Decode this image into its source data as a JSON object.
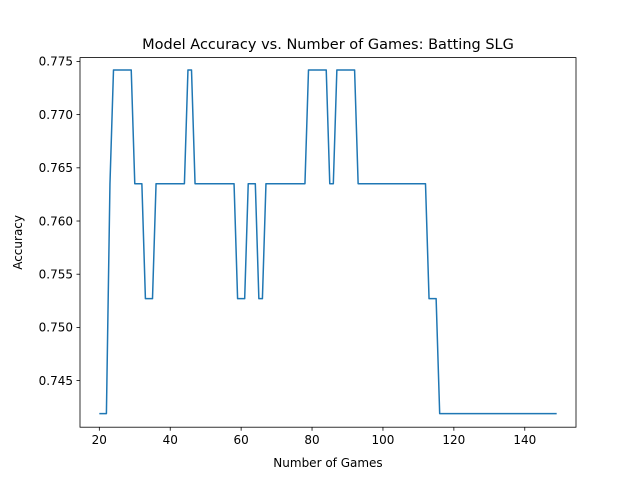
{
  "chart_data": {
    "type": "line",
    "title": "Model Accuracy vs. Number of Games: Batting SLG",
    "xlabel": "Number of Games",
    "ylabel": "Accuracy",
    "xlim": [
      14.55,
      154.45
    ],
    "ylim": [
      0.74062,
      0.77536
    ],
    "xticks": [
      20,
      40,
      60,
      80,
      100,
      120,
      140
    ],
    "yticks": [
      0.745,
      0.75,
      0.755,
      0.76,
      0.765,
      0.77,
      0.775
    ],
    "ytick_labels": [
      "0.745",
      "0.750",
      "0.755",
      "0.760",
      "0.765",
      "0.770",
      "0.775"
    ],
    "grid": false,
    "line_color": "#1f77b4",
    "series": [
      {
        "x": [
          20,
          22,
          23,
          24,
          25,
          26,
          27,
          28,
          29,
          30,
          31,
          32,
          33,
          34,
          35,
          36,
          37,
          38,
          39,
          40,
          41,
          42,
          43,
          44,
          45,
          46,
          47,
          48,
          49,
          50,
          51,
          52,
          53,
          54,
          55,
          56,
          57,
          58,
          59,
          60,
          61,
          62,
          63,
          64,
          65,
          66,
          67,
          68,
          69,
          70,
          71,
          72,
          73,
          74,
          75,
          76,
          77,
          78,
          79,
          80,
          81,
          82,
          83,
          84,
          85,
          86,
          87,
          88,
          89,
          90,
          91,
          92,
          93,
          94,
          95,
          96,
          97,
          98,
          99,
          100,
          101,
          102,
          103,
          104,
          105,
          106,
          107,
          108,
          109,
          110,
          111,
          112,
          113,
          114,
          115,
          116,
          117,
          118,
          119,
          120,
          125,
          130,
          135,
          140,
          145,
          149
        ],
        "y": [
          0.7419,
          0.7419,
          0.7635,
          0.7742,
          0.7742,
          0.7742,
          0.7742,
          0.7742,
          0.7742,
          0.7635,
          0.7635,
          0.7635,
          0.7527,
          0.7527,
          0.7527,
          0.7635,
          0.7635,
          0.7635,
          0.7635,
          0.7635,
          0.7635,
          0.7635,
          0.7635,
          0.7635,
          0.7742,
          0.7742,
          0.7635,
          0.7635,
          0.7635,
          0.7635,
          0.7635,
          0.7635,
          0.7635,
          0.7635,
          0.7635,
          0.7635,
          0.7635,
          0.7635,
          0.7527,
          0.7527,
          0.7527,
          0.7635,
          0.7635,
          0.7635,
          0.7527,
          0.7527,
          0.7635,
          0.7635,
          0.7635,
          0.7635,
          0.7635,
          0.7635,
          0.7635,
          0.7635,
          0.7635,
          0.7635,
          0.7635,
          0.7635,
          0.7742,
          0.7742,
          0.7742,
          0.7742,
          0.7742,
          0.7742,
          0.7635,
          0.7635,
          0.7742,
          0.7742,
          0.7742,
          0.7742,
          0.7742,
          0.7742,
          0.7635,
          0.7635,
          0.7635,
          0.7635,
          0.7635,
          0.7635,
          0.7635,
          0.7635,
          0.7635,
          0.7635,
          0.7635,
          0.7635,
          0.7635,
          0.7635,
          0.7635,
          0.7635,
          0.7635,
          0.7635,
          0.7635,
          0.7635,
          0.7527,
          0.7527,
          0.7527,
          0.7419,
          0.7419,
          0.7419,
          0.7419,
          0.7419,
          0.7419,
          0.7419,
          0.7419,
          0.7419,
          0.7419,
          0.7419
        ]
      }
    ]
  }
}
